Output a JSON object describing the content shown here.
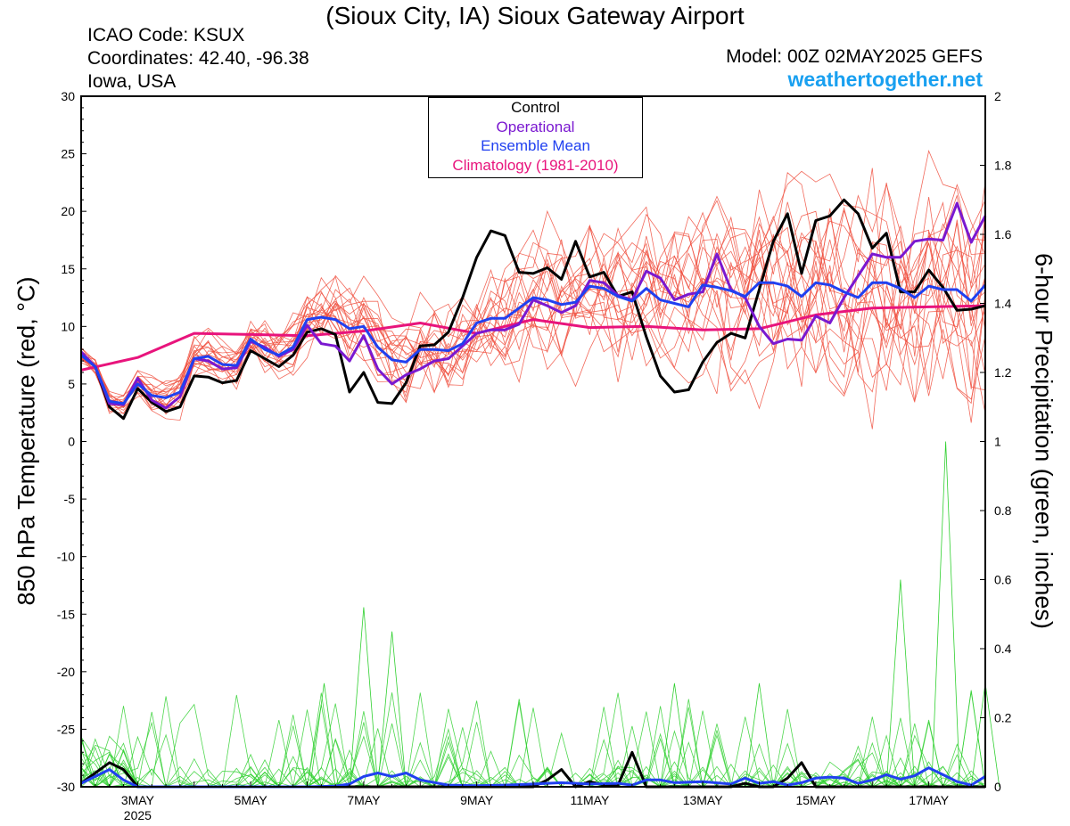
{
  "header": {
    "title": "(Sioux City, IA) Sioux Gateway Airport",
    "icao": "ICAO Code: KSUX",
    "coords": "Coordinates: 42.40, -96.38",
    "region": "Iowa, USA",
    "model": "Model: 00Z 02MAY2025 GEFS",
    "brand": "weathertogether.net"
  },
  "legend": {
    "control": "Control",
    "operational": "Operational",
    "mean": "Ensemble Mean",
    "climo": "Climatology (1981-2010)"
  },
  "colors": {
    "control": "#000000",
    "operational": "#7a18d0",
    "mean": "#2040f0",
    "climo": "#e8147c",
    "members_temp": "#f05040",
    "members_precip": "#30d030",
    "brand": "#19a0f0"
  },
  "chart_data": {
    "type": "line",
    "x_unit": "days since 00Z 02MAY2025",
    "x_range": [
      0,
      16
    ],
    "y_left": {
      "label": "850 hPa Temperature (red, °C)",
      "range": [
        -30,
        30
      ],
      "ticks": [
        30,
        25,
        20,
        15,
        10,
        5,
        0,
        -5,
        -10,
        -15,
        -20,
        -25,
        -30
      ]
    },
    "y_right": {
      "label": "6-hour Precipitation (green, inches)",
      "range": [
        0,
        2
      ],
      "ticks": [
        2,
        1.8,
        1.6,
        1.4,
        1.2,
        1,
        0.8,
        0.6,
        0.4,
        0.2,
        0
      ]
    },
    "x_ticks": [
      {
        "x": 1,
        "label": "3MAY",
        "sub": "2025"
      },
      {
        "x": 3,
        "label": "5MAY",
        "sub": ""
      },
      {
        "x": 5,
        "label": "7MAY",
        "sub": ""
      },
      {
        "x": 7,
        "label": "9MAY",
        "sub": ""
      },
      {
        "x": 9,
        "label": "11MAY",
        "sub": ""
      },
      {
        "x": 11,
        "label": "13MAY",
        "sub": ""
      },
      {
        "x": 13,
        "label": "15MAY",
        "sub": ""
      },
      {
        "x": 15,
        "label": "17MAY",
        "sub": ""
      }
    ],
    "series": [
      {
        "name": "Climatology (1981-2010)",
        "axis": "left",
        "color": "#e8147c",
        "width": 3,
        "x": [
          0,
          1,
          2,
          3,
          4,
          5,
          6,
          7,
          8,
          9,
          10,
          11,
          12,
          13,
          14,
          15,
          16
        ],
        "y": [
          6.2,
          7.3,
          9.4,
          9.3,
          9.2,
          9.6,
          10.3,
          9.4,
          10.6,
          9.9,
          10.0,
          9.7,
          9.8,
          11.0,
          11.6,
          11.7,
          11.8
        ]
      },
      {
        "name": "Control",
        "axis": "left",
        "color": "#000000",
        "width": 3,
        "x": [
          0.25,
          0.5,
          0.75,
          1,
          1.25,
          1.5,
          1.75,
          2,
          2.25,
          2.5,
          2.75,
          3,
          3.25,
          3.5,
          3.75,
          4,
          4.25,
          4.5,
          4.75,
          5,
          5.25,
          5.5,
          5.75,
          6,
          6.25,
          6.5,
          6.75,
          7,
          7.25,
          7.5,
          7.75,
          8,
          8.25,
          8.5,
          8.75,
          9,
          9.25,
          9.5,
          9.75,
          10,
          10.25,
          10.5,
          10.75,
          11,
          11.25,
          11.5,
          11.75,
          12,
          12.25,
          12.5,
          12.75,
          13,
          13.25,
          13.5,
          13.75,
          14,
          14.25,
          14.5,
          14.75,
          15,
          15.25,
          15.5,
          15.75,
          16
        ],
        "y": [
          6.5,
          3.0,
          2.0,
          4.6,
          3.4,
          2.6,
          3.0,
          5.7,
          5.6,
          5.1,
          5.3,
          7.9,
          7.2,
          6.5,
          7.5,
          9.5,
          9.8,
          9.3,
          4.3,
          6.0,
          3.4,
          3.3,
          5.1,
          8.3,
          8.4,
          9.5,
          12.5,
          16.0,
          18.3,
          17.9,
          14.7,
          14.6,
          15.1,
          14.1,
          17.4,
          14.3,
          14.7,
          12.6,
          13.0,
          9.1,
          5.7,
          4.3,
          4.5,
          6.9,
          8.6,
          9.4,
          9.0,
          13.2,
          17.4,
          19.8,
          14.6,
          19.2,
          19.6,
          21.0,
          19.8,
          16.8,
          18.1,
          13.0,
          13.0,
          14.9,
          13.4,
          11.4,
          11.5,
          11.8
        ]
      },
      {
        "name": "Operational",
        "axis": "left",
        "color": "#7a18d0",
        "width": 3,
        "x": [
          0,
          0.25,
          0.5,
          0.75,
          1,
          1.25,
          1.5,
          1.75,
          2,
          2.25,
          2.5,
          2.75,
          3,
          3.25,
          3.5,
          3.75,
          4,
          4.25,
          4.5,
          4.75,
          5,
          5.25,
          5.5,
          5.75,
          6,
          6.25,
          6.5,
          6.75,
          7,
          7.25,
          7.5,
          7.75,
          8,
          8.25,
          8.5,
          8.75,
          9,
          9.25,
          9.5,
          9.75,
          10,
          10.25,
          10.5,
          10.75,
          11,
          11.25,
          11.5,
          11.75,
          12,
          12.25,
          12.5,
          12.75,
          13,
          13.25,
          13.5,
          13.75,
          14,
          14.25,
          14.5,
          14.75,
          15,
          15.25,
          15.5,
          15.75,
          16
        ],
        "y": [
          7.8,
          6.5,
          3.3,
          3.2,
          5.5,
          3.6,
          2.9,
          3.9,
          7.2,
          7.0,
          6.3,
          6.4,
          8.7,
          8.2,
          7.4,
          8.0,
          10.1,
          8.5,
          8.3,
          7.0,
          9.2,
          6.3,
          5.0,
          5.8,
          6.3,
          7.0,
          7.2,
          8.3,
          9.4,
          9.7,
          9.7,
          10.2,
          12.3,
          11.8,
          11.2,
          11.8,
          14.0,
          13.8,
          12.7,
          12.3,
          14.8,
          14.2,
          12.3,
          12.8,
          13.0,
          16.3,
          13.2,
          12.5,
          10.0,
          8.5,
          8.9,
          8.8,
          10.9,
          10.3,
          12.5,
          14.4,
          16.3,
          16.0,
          16.0,
          17.4,
          17.6,
          17.5,
          20.7,
          17.3,
          19.6
        ]
      },
      {
        "name": "Ensemble Mean",
        "axis": "left",
        "color": "#2040f0",
        "width": 3,
        "x": [
          0,
          0.25,
          0.5,
          0.75,
          1,
          1.25,
          1.5,
          1.75,
          2,
          2.25,
          2.5,
          2.75,
          3,
          3.25,
          3.5,
          3.75,
          4,
          4.25,
          4.5,
          4.75,
          5,
          5.25,
          5.5,
          5.75,
          6,
          6.25,
          6.5,
          6.75,
          7,
          7.25,
          7.5,
          7.75,
          8,
          8.25,
          8.5,
          8.75,
          9,
          9.25,
          9.5,
          9.75,
          10,
          10.25,
          10.5,
          10.75,
          11,
          11.25,
          11.5,
          11.75,
          12,
          12.25,
          12.5,
          12.75,
          13,
          13.25,
          13.5,
          13.75,
          14,
          14.25,
          14.5,
          14.75,
          15,
          15.25,
          15.5,
          15.75,
          16
        ],
        "y": [
          7.5,
          6.5,
          3.5,
          3.3,
          5.0,
          4.0,
          3.8,
          4.3,
          7.2,
          7.4,
          6.7,
          6.6,
          8.9,
          8.0,
          7.5,
          8.2,
          10.6,
          10.8,
          10.6,
          9.8,
          10.0,
          8.2,
          7.1,
          6.9,
          8.0,
          8.0,
          7.9,
          8.5,
          10.3,
          10.7,
          10.7,
          11.6,
          12.5,
          12.3,
          11.9,
          12.1,
          13.5,
          13.3,
          12.6,
          12.2,
          13.3,
          12.3,
          12.0,
          11.7,
          13.6,
          13.4,
          13.1,
          12.6,
          13.8,
          13.8,
          13.5,
          12.6,
          13.8,
          13.6,
          13.0,
          12.5,
          13.8,
          13.8,
          13.3,
          12.5,
          13.5,
          13.2,
          13.2,
          12.2,
          13.6
        ]
      },
      {
        "name": "Control precip",
        "axis": "right",
        "color": "#000000",
        "width": 3,
        "x": [
          0,
          0.25,
          0.5,
          0.75,
          1,
          1.25,
          5,
          6,
          7,
          7.5,
          8,
          8.25,
          8.5,
          8.75,
          9,
          9.25,
          9.5,
          9.75,
          10,
          10.25,
          10.5,
          11,
          11.5,
          11.75,
          12,
          12.25,
          12.5,
          12.75,
          13,
          13.5,
          14,
          15,
          16
        ],
        "y": [
          0.01,
          0.04,
          0.07,
          0.05,
          0,
          0,
          0,
          0,
          0,
          0,
          0,
          0.02,
          0.05,
          0,
          0.015,
          0.005,
          0.005,
          0.1,
          0,
          0,
          0,
          0,
          0,
          0.01,
          0,
          0,
          0.025,
          0.07,
          0,
          0,
          0,
          0,
          0
        ]
      },
      {
        "name": "Ensemble Mean precip",
        "axis": "right",
        "color": "#2040f0",
        "width": 3,
        "x": [
          0,
          0.25,
          0.5,
          0.75,
          1,
          1.25,
          1.5,
          2,
          3,
          4,
          4.5,
          4.75,
          5,
          5.25,
          5.5,
          5.75,
          6,
          6.5,
          7,
          7.5,
          8,
          8.5,
          9,
          9.5,
          9.75,
          10,
          10.25,
          10.5,
          11,
          11.5,
          11.75,
          12,
          12.25,
          12.5,
          12.75,
          13,
          13.25,
          13.5,
          13.75,
          14,
          14.25,
          14.5,
          14.75,
          15,
          15.25,
          15.5,
          15.75,
          16
        ],
        "y": [
          0.01,
          0.03,
          0.05,
          0.02,
          0,
          0,
          0,
          0,
          0,
          0,
          0.002,
          0.008,
          0.03,
          0.04,
          0.03,
          0.04,
          0.02,
          0.005,
          0.003,
          0.005,
          0.008,
          0.012,
          0.008,
          0.01,
          0.005,
          0.02,
          0.02,
          0.012,
          0.015,
          0.008,
          0.025,
          0.01,
          0.015,
          0.005,
          0.012,
          0.025,
          0.028,
          0.025,
          0.01,
          0.02,
          0.035,
          0.022,
          0.032,
          0.055,
          0.035,
          0.015,
          0.005,
          0.03
        ]
      }
    ],
    "ensemble_members_temp": {
      "count": 20,
      "color": "#f05040",
      "note": "thin red lines spread around the mean"
    },
    "ensemble_members_precip": {
      "count": 20,
      "color": "#30d030",
      "note": "thin green lines near zero with spikes"
    }
  }
}
